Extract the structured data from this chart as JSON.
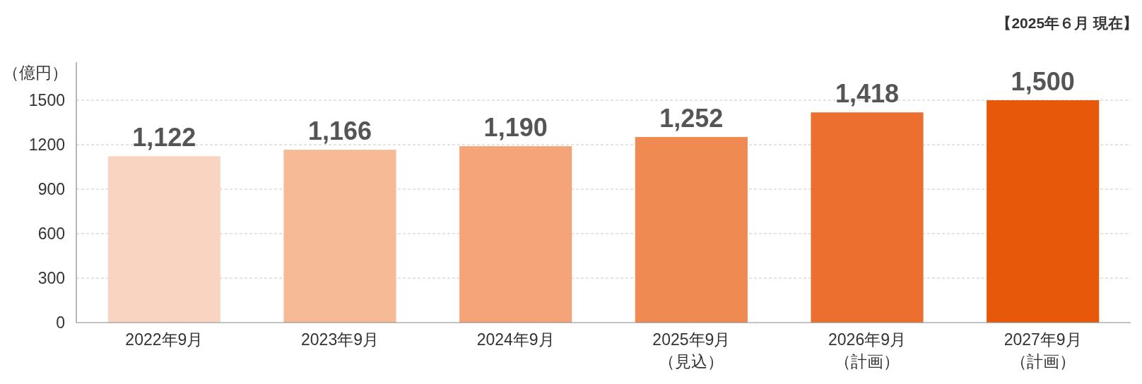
{
  "chart_data": {
    "type": "bar",
    "categories": [
      "2022年9月",
      "2023年9月",
      "2024年9月",
      "2025年9月（見込）",
      "2026年9月（計画）",
      "2027年9月（計画）"
    ],
    "values": [
      1122,
      1166,
      1190,
      1252,
      1418,
      1500
    ],
    "value_labels": [
      "1,122",
      "1,166",
      "1,190",
      "1,252",
      "1,418",
      "1,500"
    ],
    "colors": [
      "#f9d4c1",
      "#f7ba97",
      "#f4a478",
      "#f08a53",
      "#ec6f2f",
      "#e8580a"
    ],
    "ylabel": "（億円）",
    "annotations": [
      "【2025年６月 現在】"
    ],
    "ylim": [
      0,
      1500
    ],
    "yticks": [
      0,
      300,
      600,
      900,
      1200,
      1500
    ],
    "grid": "y"
  }
}
